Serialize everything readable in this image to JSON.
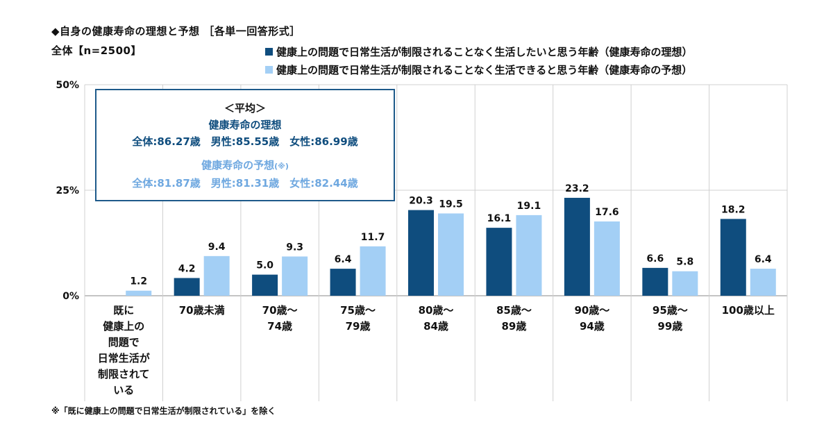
{
  "header": {
    "title": "◆自身の健康寿命の理想と予想 ［各単一回答形式］",
    "base": "全体【n=2500】"
  },
  "avg_box": {
    "title": "＜平均＞",
    "ideal_heading": "健康寿命の理想",
    "ideal_values": "全体:86.27歳　男性:85.55歳　女性:86.99歳",
    "forecast_heading": "健康寿命の予想",
    "forecast_mark": "(※)",
    "forecast_values": "全体:81.87歳　男性:81.31歳　女性:82.44歳"
  },
  "footnote": "※「既に健康上の問題で日常生活が制限されている」を除く",
  "colors": {
    "series1": "#0f4d7e",
    "series2": "#a3cff5",
    "grid": "#d0d0d0",
    "axis": "#888888"
  },
  "chart_data": {
    "type": "bar",
    "title": "◆自身の健康寿命の理想と予想 ［各単一回答形式］",
    "ylim": [
      0,
      50
    ],
    "yticks": [
      "0%",
      "25%",
      "50%"
    ],
    "ytick_values": [
      0,
      25,
      50
    ],
    "legend_position": "top-right",
    "categories": [
      [
        "既に",
        "健康上の",
        "問題で",
        "日常生活が",
        "制限されて",
        "いる"
      ],
      [
        "70歳未満"
      ],
      [
        "70歳～",
        "74歳"
      ],
      [
        "75歳～",
        "79歳"
      ],
      [
        "80歳～",
        "84歳"
      ],
      [
        "85歳～",
        "89歳"
      ],
      [
        "90歳～",
        "94歳"
      ],
      [
        "95歳～",
        "99歳"
      ],
      [
        "100歳以上"
      ]
    ],
    "series": [
      {
        "name": "健康上の問題で日常生活が制限されることなく生活したいと思う年齢（健康寿命の理想）",
        "values": [
          null,
          4.2,
          5.0,
          6.4,
          20.3,
          16.1,
          23.2,
          6.6,
          18.2
        ],
        "labels": [
          "",
          "4.2",
          "5.0",
          "6.4",
          "20.3",
          "16.1",
          "23.2",
          "6.6",
          "18.2"
        ]
      },
      {
        "name": "健康上の問題で日常生活が制限されることなく生活できると思う年齢（健康寿命の予想）",
        "values": [
          1.2,
          9.4,
          9.3,
          11.7,
          19.5,
          19.1,
          17.6,
          5.8,
          6.4
        ],
        "labels": [
          "1.2",
          "9.4",
          "9.3",
          "11.7",
          "19.5",
          "19.1",
          "17.6",
          "5.8",
          "6.4"
        ]
      }
    ]
  }
}
